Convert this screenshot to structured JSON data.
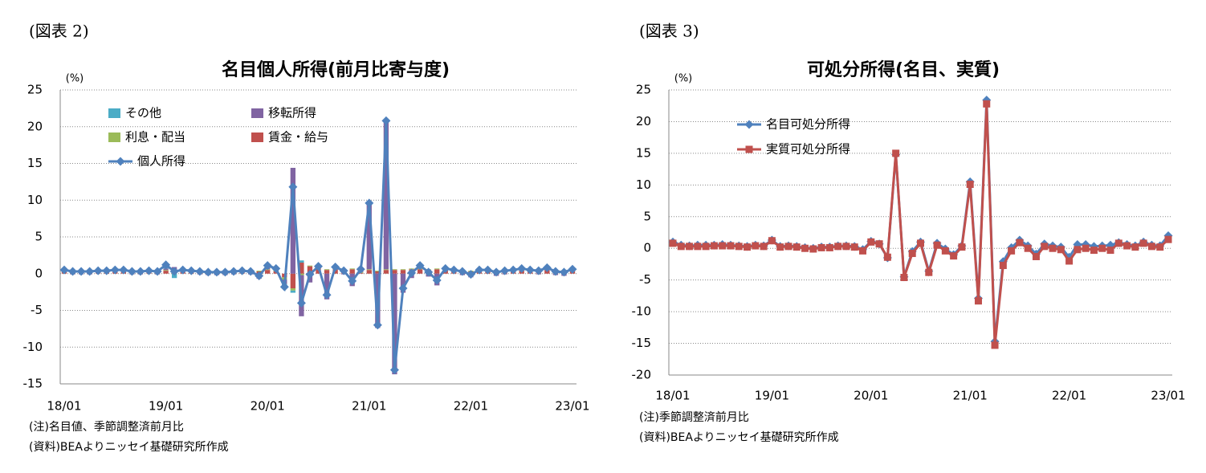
{
  "chart_data": [
    {
      "type": "combo",
      "figure_label": "(図表 2)",
      "title": "名目個人所得(前月比寄与度)",
      "unit": "(%)",
      "notes": [
        "(注)名目値、季節調整済前月比",
        "(資料)BEAよりニッセイ基礎研究所作成"
      ],
      "categories": [
        "18/01",
        null,
        null,
        null,
        null,
        null,
        null,
        null,
        null,
        null,
        null,
        null,
        "19/01",
        null,
        null,
        null,
        null,
        null,
        null,
        null,
        null,
        null,
        null,
        null,
        "20/01",
        null,
        null,
        null,
        null,
        null,
        null,
        null,
        null,
        null,
        null,
        null,
        "21/01",
        null,
        null,
        null,
        null,
        null,
        null,
        null,
        null,
        null,
        null,
        null,
        "22/01",
        null,
        null,
        null,
        null,
        null,
        null,
        null,
        null,
        null,
        null,
        null,
        "23/01"
      ],
      "ylim": [
        -15,
        25
      ],
      "yticks": [
        -15,
        -10,
        -5,
        0,
        5,
        10,
        15,
        20,
        25
      ],
      "grid": true,
      "series": [
        {
          "name": "その他",
          "type": "bar",
          "color": "#4bacc6",
          "values": [
            0,
            0,
            0,
            0,
            0,
            0,
            0,
            0,
            0,
            0,
            0,
            0,
            0.5,
            -0.6,
            0,
            0,
            0,
            0,
            0,
            0,
            0,
            0,
            0,
            0,
            0,
            0,
            -0.4,
            -0.3,
            0.3,
            0,
            0,
            0,
            0,
            0,
            0,
            0,
            0,
            0,
            0,
            0,
            0,
            0,
            0,
            0,
            0,
            0,
            0,
            0,
            0,
            0,
            0,
            0,
            0,
            0,
            0,
            0,
            0,
            0,
            0,
            0,
            0
          ]
        },
        {
          "name": "移転所得",
          "type": "bar",
          "color": "#8064a2",
          "values": [
            0.1,
            -0.1,
            -0.1,
            -0.1,
            0,
            0,
            0.1,
            0.1,
            -0.1,
            -0.1,
            0,
            -0.1,
            0.2,
            0.5,
            0.1,
            0,
            -0.1,
            -0.2,
            -0.2,
            -0.2,
            -0.1,
            0,
            -0.1,
            -0.7,
            0.5,
            0.3,
            -0.6,
            14.4,
            -5.6,
            -1.2,
            0.1,
            -3.5,
            0.2,
            -0.1,
            -1.7,
            0.4,
            9.0,
            -7.4,
            20.2,
            -13.7,
            -2.6,
            -0.6,
            0.4,
            -0.4,
            -1.6,
            0.1,
            0,
            -0.2,
            -0.5,
            0,
            0,
            -0.3,
            -0.1,
            0,
            0.2,
            0,
            -0.1,
            0.2,
            -0.2,
            -0.3,
            0.1
          ]
        },
        {
          "name": "利息・配当",
          "type": "bar",
          "color": "#9bbb59",
          "values": [
            0.1,
            0.1,
            0.1,
            0.1,
            0.1,
            0.1,
            0.1,
            0.1,
            0.1,
            0.1,
            0.1,
            0.1,
            0.1,
            0.1,
            0.1,
            0.1,
            0.1,
            0.1,
            0.1,
            0.1,
            0.1,
            0.1,
            0.1,
            0.1,
            0.1,
            0.1,
            -0.3,
            -0.3,
            -0.2,
            0.1,
            0.1,
            0.1,
            0.1,
            0.1,
            0.1,
            0.1,
            0.1,
            0.1,
            0.1,
            0.1,
            0.1,
            0.1,
            0.1,
            0.1,
            0.1,
            0.1,
            0.1,
            0.1,
            0.1,
            0.1,
            0.1,
            0.1,
            0.1,
            0.1,
            0.1,
            0.1,
            0.1,
            0.1,
            0.1,
            0.1,
            0.1
          ]
        },
        {
          "name": "賃金・給与",
          "type": "bar",
          "color": "#c0504d",
          "values": [
            0.3,
            0.3,
            0.3,
            0.3,
            0.3,
            0.3,
            0.3,
            0.3,
            0.3,
            0.3,
            0.3,
            0.3,
            0.4,
            0.3,
            0.3,
            0.3,
            0.3,
            0.3,
            0.3,
            0.3,
            0.3,
            0.3,
            0.3,
            0.3,
            0.5,
            0.3,
            -0.5,
            -2.0,
            1.5,
            1.0,
            0.8,
            0.5,
            0.6,
            0.4,
            0.6,
            0.1,
            0.5,
            0.3,
            0.5,
            0.5,
            0.5,
            0.6,
            0.6,
            0.5,
            0.6,
            0.5,
            0.4,
            0.4,
            0.3,
            0.4,
            0.4,
            0.4,
            0.4,
            0.4,
            0.4,
            0.4,
            0.4,
            0.5,
            0.4,
            0.4,
            0.4
          ]
        },
        {
          "name": "個人所得",
          "type": "line",
          "marker": "diamond",
          "color": "#4f81bd",
          "values": [
            0.5,
            0.3,
            0.3,
            0.3,
            0.4,
            0.4,
            0.5,
            0.5,
            0.3,
            0.3,
            0.4,
            0.3,
            1.2,
            0.3,
            0.5,
            0.4,
            0.3,
            0.2,
            0.2,
            0.2,
            0.3,
            0.4,
            0.3,
            -0.3,
            1.1,
            0.7,
            -1.8,
            11.8,
            -4.0,
            -0.1,
            1.0,
            -2.9,
            0.9,
            0.4,
            -1.0,
            0.6,
            9.6,
            -7.0,
            20.8,
            -13.1,
            -2.0,
            0.1,
            1.1,
            0.2,
            -0.9,
            0.7,
            0.5,
            0.3,
            -0.1,
            0.5,
            0.5,
            0.2,
            0.4,
            0.5,
            0.7,
            0.5,
            0.4,
            0.8,
            0.3,
            0.2,
            0.6
          ]
        }
      ]
    },
    {
      "type": "line",
      "figure_label": "(図表 3)",
      "title": "可処分所得(名目、実質)",
      "unit": "(%)",
      "notes": [
        "(注)季節調整済前月比",
        "(資料)BEAよりニッセイ基礎研究所作成"
      ],
      "categories": [
        "18/01",
        null,
        null,
        null,
        null,
        null,
        null,
        null,
        null,
        null,
        null,
        null,
        "19/01",
        null,
        null,
        null,
        null,
        null,
        null,
        null,
        null,
        null,
        null,
        null,
        "20/01",
        null,
        null,
        null,
        null,
        null,
        null,
        null,
        null,
        null,
        null,
        null,
        "21/01",
        null,
        null,
        null,
        null,
        null,
        null,
        null,
        null,
        null,
        null,
        null,
        "22/01",
        null,
        null,
        null,
        null,
        null,
        null,
        null,
        null,
        null,
        null,
        null,
        "23/01"
      ],
      "ylim": [
        -20,
        25
      ],
      "yticks": [
        -20,
        -15,
        -10,
        -5,
        0,
        5,
        10,
        15,
        20,
        25
      ],
      "grid": true,
      "series": [
        {
          "name": "名目可処分所得",
          "type": "line",
          "marker": "diamond",
          "color": "#4f81bd",
          "values": [
            1.0,
            0.5,
            0.4,
            0.5,
            0.5,
            0.5,
            0.6,
            0.5,
            0.4,
            0.3,
            0.5,
            0.4,
            1.3,
            0.3,
            0.4,
            0.3,
            0.1,
            0,
            0.2,
            0.2,
            0.4,
            0.4,
            0.3,
            -0.2,
            1.1,
            0.7,
            -1.5,
            14.8,
            -4.5,
            -0.5,
            1.0,
            -3.6,
            0.8,
            -0.1,
            -1.0,
            0.4,
            10.5,
            -7.9,
            23.4,
            -14.7,
            -2.1,
            0.1,
            1.3,
            0.4,
            -0.9,
            0.7,
            0.4,
            0.2,
            -1.4,
            0.6,
            0.6,
            0.3,
            0.4,
            0.5,
            0.9,
            0.6,
            0.4,
            1.0,
            0.5,
            0.4,
            2.0
          ]
        },
        {
          "name": "実質可処分所得",
          "type": "line",
          "marker": "square",
          "color": "#c0504d",
          "values": [
            0.8,
            0.3,
            0.3,
            0.3,
            0.3,
            0.4,
            0.4,
            0.4,
            0.3,
            0.2,
            0.4,
            0.3,
            1.2,
            0.2,
            0.3,
            0.2,
            0,
            -0.1,
            0.1,
            0.1,
            0.3,
            0.3,
            0.2,
            -0.4,
            1.0,
            0.7,
            -1.4,
            15.0,
            -4.6,
            -0.8,
            0.8,
            -3.8,
            0.5,
            -0.4,
            -1.2,
            0.2,
            10.1,
            -8.3,
            22.8,
            -15.3,
            -2.7,
            -0.4,
            0.9,
            0,
            -1.3,
            0.3,
            0,
            -0.2,
            -2.0,
            -0.2,
            0,
            -0.3,
            0,
            -0.3,
            0.8,
            0.4,
            0.2,
            0.8,
            0.3,
            0.2,
            1.4
          ]
        }
      ]
    }
  ]
}
